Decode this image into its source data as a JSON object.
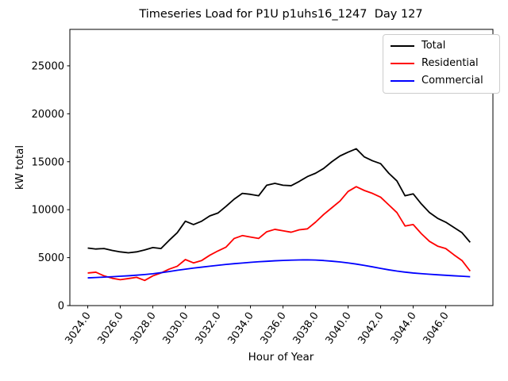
{
  "figure": {
    "title": "Timeseries Load for P1U p1uhs16_1247  Day 127",
    "xlabel": "Hour of Year",
    "ylabel": "kW total"
  },
  "chart_data": {
    "type": "line",
    "title": "Timeseries Load for P1U p1uhs16_1247  Day 127",
    "xlabel": "Hour of Year",
    "ylabel": "kW total",
    "grid": false,
    "legend_position": "upper right",
    "xlim": [
      3022.9,
      3048.9
    ],
    "ylim": [
      0,
      28800
    ],
    "x_tick_values": [
      3024,
      3026,
      3028,
      3030,
      3032,
      3034,
      3036,
      3038,
      3040,
      3042,
      3044,
      3046
    ],
    "x_tick_labels": [
      "3024.0",
      "3026.0",
      "3028.0",
      "3030.0",
      "3032.0",
      "3034.0",
      "3036.0",
      "3038.0",
      "3040.0",
      "3042.0",
      "3044.0",
      "3046.0"
    ],
    "y_tick_values": [
      0,
      5000,
      10000,
      15000,
      20000,
      25000
    ],
    "y_tick_labels": [
      "0",
      "5000",
      "10000",
      "15000",
      "20000",
      "25000"
    ],
    "x": [
      3024.0,
      3024.5,
      3025.0,
      3025.5,
      3026.0,
      3026.5,
      3027.0,
      3027.5,
      3028.0,
      3028.5,
      3029.0,
      3029.5,
      3030.0,
      3030.5,
      3031.0,
      3031.5,
      3032.0,
      3032.5,
      3033.0,
      3033.5,
      3034.0,
      3034.5,
      3035.0,
      3035.5,
      3036.0,
      3036.5,
      3037.0,
      3037.5,
      3038.0,
      3038.5,
      3039.0,
      3039.5,
      3040.0,
      3040.5,
      3041.0,
      3041.5,
      3042.0,
      3042.5,
      3043.0,
      3043.5,
      3044.0,
      3044.5,
      3045.0,
      3045.5,
      3046.0,
      3046.5,
      3047.0,
      3047.5
    ],
    "series": [
      {
        "name": "Total",
        "color": "#000000",
        "values": [
          6000,
          5900,
          5950,
          5750,
          5600,
          5500,
          5600,
          5800,
          6050,
          5950,
          6800,
          7600,
          8800,
          8450,
          8800,
          9350,
          9650,
          10350,
          11100,
          11700,
          11600,
          11450,
          12550,
          12750,
          12550,
          12500,
          12950,
          13450,
          13800,
          14300,
          15000,
          15600,
          16000,
          16350,
          15500,
          15100,
          14800,
          13800,
          13000,
          11450,
          11650,
          10600,
          9700,
          9100,
          8700,
          8150,
          7600,
          6600
        ]
      },
      {
        "name": "Residential",
        "color": "#ff0000",
        "values": [
          3400,
          3480,
          3100,
          2850,
          2700,
          2820,
          2950,
          2620,
          3100,
          3400,
          3800,
          4100,
          4800,
          4450,
          4700,
          5250,
          5700,
          6100,
          7000,
          7300,
          7150,
          7000,
          7700,
          7950,
          7800,
          7650,
          7900,
          8000,
          8700,
          9500,
          10200,
          10900,
          11900,
          12400,
          12000,
          11700,
          11300,
          10500,
          9700,
          8300,
          8450,
          7500,
          6700,
          6200,
          5950,
          5300,
          4700,
          3600
        ]
      },
      {
        "name": "Commercial",
        "color": "#0000ff",
        "values": [
          2890,
          2930,
          2970,
          3010,
          3060,
          3110,
          3170,
          3240,
          3320,
          3430,
          3550,
          3680,
          3800,
          3910,
          4010,
          4110,
          4200,
          4290,
          4370,
          4440,
          4510,
          4570,
          4620,
          4670,
          4710,
          4740,
          4760,
          4770,
          4750,
          4700,
          4630,
          4550,
          4450,
          4330,
          4190,
          4040,
          3880,
          3730,
          3600,
          3490,
          3400,
          3330,
          3270,
          3210,
          3160,
          3110,
          3060,
          3010
        ]
      }
    ]
  }
}
